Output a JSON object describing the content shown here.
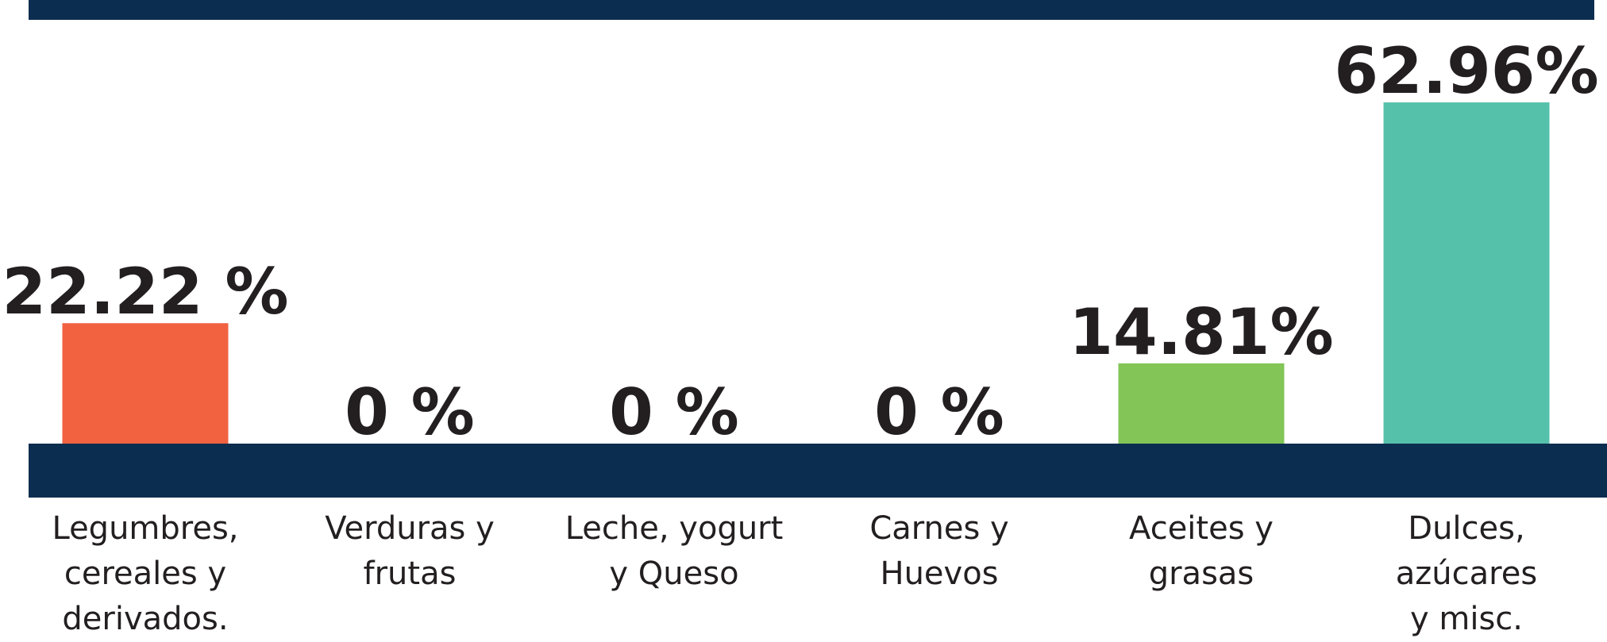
{
  "chart_data": {
    "type": "bar",
    "categories": [
      "Legumbres,\ncereales y\nderivados.",
      "Verduras y\nfrutas",
      "Leche, yogurt\ny Queso",
      "Carnes y\nHuevos",
      "Aceites y\ngrasas",
      "Dulces,\nazúcares\ny  misc."
    ],
    "values": [
      22.22,
      0,
      0,
      0,
      14.81,
      62.96
    ],
    "value_labels": [
      "22.22 %",
      "0 %",
      "0 %",
      "0 %",
      "14.81%",
      "62.96%"
    ],
    "colors": [
      "#f26241",
      "#83c557",
      "#83c557",
      "#83c557",
      "#83c557",
      "#56c1ab"
    ]
  }
}
